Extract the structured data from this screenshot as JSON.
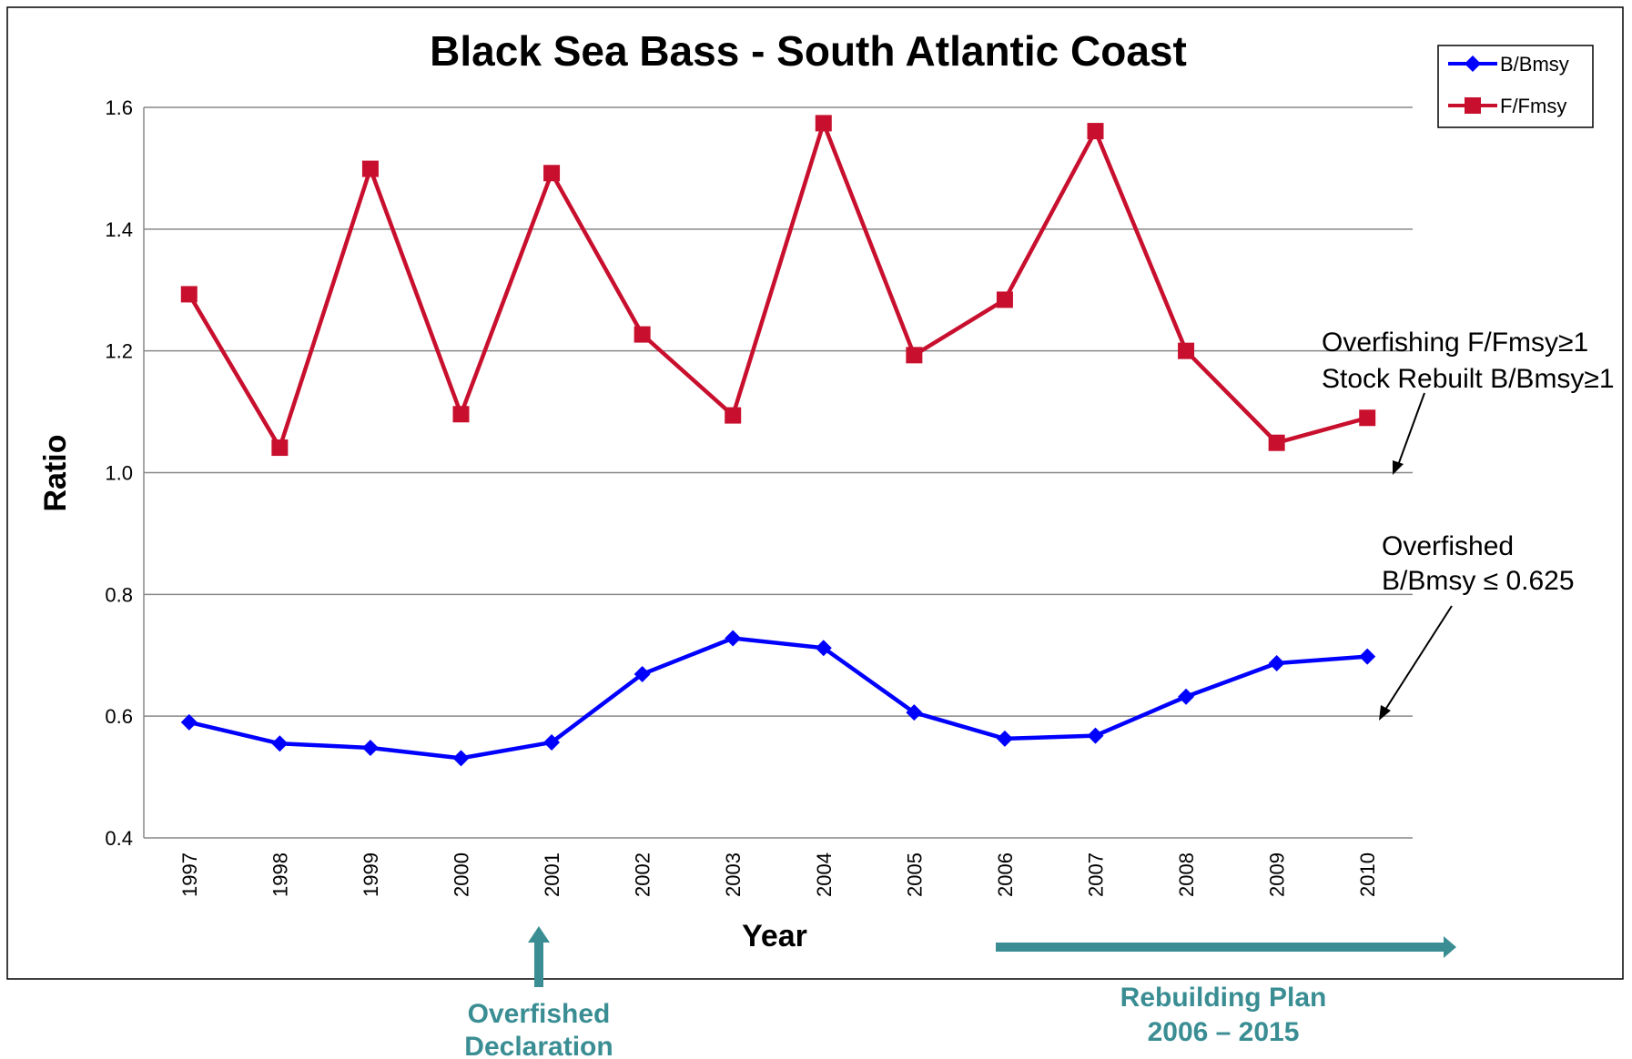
{
  "chart_data": {
    "type": "line",
    "title": "Black Sea Bass - South Atlantic Coast",
    "xlabel": "Year",
    "ylabel": "Ratio",
    "ylim": [
      0.4,
      1.6
    ],
    "yticks": [
      "0.4",
      "0.6",
      "0.8",
      "1.0",
      "1.2",
      "1.4",
      "1.6"
    ],
    "categories": [
      "1997",
      "1998",
      "1999",
      "2000",
      "2001",
      "2002",
      "2003",
      "2004",
      "2005",
      "2006",
      "2007",
      "2008",
      "2009",
      "2010"
    ],
    "series": [
      {
        "name": "B/Bmsy",
        "color": "#0000ff",
        "marker": "diamond",
        "values": [
          0.59,
          0.555,
          0.548,
          0.531,
          0.557,
          0.669,
          0.728,
          0.712,
          0.606,
          0.563,
          0.568,
          0.632,
          0.687,
          0.698
        ]
      },
      {
        "name": "F/Fmsy",
        "color": "#c8102e",
        "marker": "square",
        "values": [
          1.293,
          1.041,
          1.499,
          1.096,
          1.492,
          1.227,
          1.094,
          1.574,
          1.193,
          1.284,
          1.561,
          1.2,
          1.049,
          1.09
        ]
      }
    ],
    "grid": true,
    "legend_position": "top-right"
  },
  "annotations": {
    "overfishing_line1": "Overfishing F/Fmsy≥1",
    "overfishing_line2": "Stock Rebuilt B/Bmsy≥1",
    "overfished_line1": "Overfished",
    "overfished_line2": "B/Bmsy ≤ 0.625",
    "declaration_line1": "Overfished",
    "declaration_line2": "Declaration",
    "rebuilding_line1": "Rebuilding Plan",
    "rebuilding_line2": "2006 – 2015"
  },
  "colors": {
    "note": "#3a8e93",
    "grid": "#888888"
  }
}
